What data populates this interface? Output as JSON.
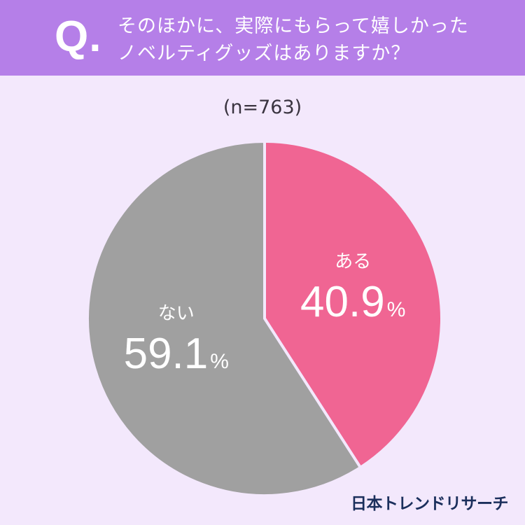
{
  "header": {
    "q_mark": "Q.",
    "question_line1": "そのほかに、実際にもらって嬉しかった",
    "question_line2": "ノベルティグッズはありますか？"
  },
  "sample_size": "(n=763)",
  "brand": "日本トレンドリサーチ",
  "colors": {
    "background": "#f3e8fc",
    "header": "#b57fe8",
    "yes": "#f06593",
    "no": "#a0a0a0",
    "text_light": "#ffffff",
    "brand_text": "#1b2f5c"
  },
  "chart_data": {
    "type": "pie",
    "unit": "%",
    "slices": [
      {
        "label": "ある",
        "value": 40.9,
        "value_label": "40.9",
        "color": "#f06593"
      },
      {
        "label": "ない",
        "value": 59.1,
        "value_label": "59.1",
        "color": "#a0a0a0"
      }
    ],
    "start": "12 o'clock",
    "direction": "clockwise"
  }
}
